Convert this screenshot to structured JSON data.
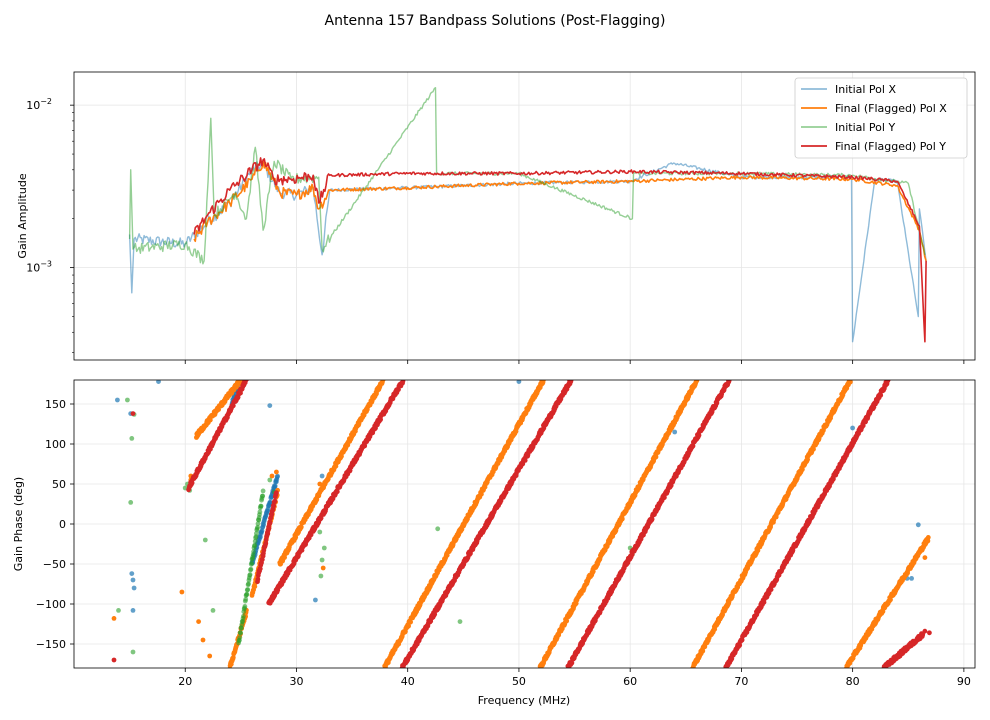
{
  "chart_data": [
    {
      "type": "line",
      "panel": "amplitude",
      "title": "Antenna 157 Bandpass Solutions (Post-Flagging)",
      "xlabel": "",
      "ylabel": "Gain Amplitude",
      "yscale": "log",
      "xlim": [
        10,
        91
      ],
      "ylim": [
        0.00027,
        0.016
      ],
      "x_ticks": [
        20,
        30,
        40,
        50,
        60,
        70,
        80,
        90
      ],
      "y_ticks": [
        {
          "value": 0.001,
          "base": "10",
          "exp": "−3"
        },
        {
          "value": 0.01,
          "base": "10",
          "exp": "−2"
        }
      ],
      "grid": true,
      "legend_position": "upper right",
      "series": [
        {
          "name": "Initial Pol X",
          "color": "#1f77b4",
          "alpha": 0.5,
          "x": [
            15.0,
            15.2,
            15.4,
            20.0,
            22.0,
            24.0,
            26.0,
            27.0,
            28.5,
            30.0,
            31.5,
            32.3,
            33.0,
            40.0,
            50.0,
            60.0,
            63.9,
            70.0,
            79.9,
            80.0,
            82.0,
            84.0,
            85.9,
            86.0,
            86.6
          ],
          "values": [
            0.0016,
            0.0007,
            0.0015,
            0.0014,
            0.0019,
            0.0025,
            0.004,
            0.0043,
            0.0029,
            0.0028,
            0.0031,
            0.0012,
            0.003,
            0.0031,
            0.0033,
            0.0034,
            0.0044,
            0.0036,
            0.0036,
            0.00035,
            0.0035,
            0.0034,
            0.0005,
            0.0023,
            0.0011
          ]
        },
        {
          "name": "Final (Flagged) Pol X",
          "color": "#ff7f0e",
          "alpha": 1,
          "x": [
            20.8,
            22.0,
            24.0,
            26.0,
            27.0,
            28.5,
            30.0,
            31.5,
            32.0,
            33.0,
            40.0,
            50.0,
            60.0,
            70.0,
            80.0,
            84.0,
            86.0,
            86.6
          ],
          "values": [
            0.0015,
            0.0019,
            0.0025,
            0.0035,
            0.0045,
            0.0029,
            0.0028,
            0.0031,
            0.0023,
            0.003,
            0.0031,
            0.0033,
            0.0034,
            0.0036,
            0.0035,
            0.0032,
            0.0017,
            0.0011
          ]
        },
        {
          "name": "Initial Pol Y",
          "color": "#2ca02c",
          "alpha": 0.5,
          "x": [
            15.0,
            15.1,
            15.3,
            20.0,
            21.7,
            22.3,
            22.6,
            24.5,
            25.5,
            26.3,
            27.0,
            28.0,
            29.5,
            32.0,
            32.3,
            42.5,
            42.6,
            50.0,
            60.2,
            60.3,
            70.0,
            80.0,
            85.0,
            86.5
          ],
          "values": [
            0.0015,
            0.004,
            0.0013,
            0.0014,
            0.0011,
            0.0083,
            0.0021,
            0.0029,
            0.002,
            0.0055,
            0.0017,
            0.0045,
            0.0035,
            0.0036,
            0.0013,
            0.0128,
            0.0038,
            0.0038,
            0.002,
            0.0038,
            0.0038,
            0.0037,
            0.0033,
            0.0012
          ]
        },
        {
          "name": "Final (Flagged) Pol Y",
          "color": "#d62728",
          "alpha": 1,
          "x": [
            20.8,
            22.0,
            24.0,
            26.0,
            27.0,
            28.0,
            29.5,
            31.5,
            32.0,
            33.0,
            40.0,
            50.0,
            60.0,
            70.0,
            80.0,
            84.0,
            86.0,
            86.5,
            86.6
          ],
          "values": [
            0.0016,
            0.0021,
            0.003,
            0.004,
            0.0046,
            0.0035,
            0.0035,
            0.0037,
            0.0025,
            0.0037,
            0.0038,
            0.0038,
            0.0039,
            0.0038,
            0.0036,
            0.0034,
            0.0018,
            0.00035,
            0.0011
          ]
        }
      ]
    },
    {
      "type": "scatter",
      "panel": "phase",
      "xlabel": "Frequency (MHz)",
      "ylabel": "Gain Phase (deg)",
      "xlim": [
        10,
        91
      ],
      "ylim": [
        -180,
        180
      ],
      "x_ticks": [
        20,
        30,
        40,
        50,
        60,
        70,
        80,
        90
      ],
      "y_ticks": [
        -150,
        -100,
        -50,
        0,
        50,
        100,
        150
      ],
      "grid": true,
      "series": [
        {
          "name": "Initial Pol X",
          "color": "#1f77b4",
          "alpha": 0.7,
          "segments": [
            [
              [
                24.2,
                150
              ],
              [
                24.9,
                180
              ]
            ],
            [
              [
                26.0,
                -50
              ],
              [
                28.3,
                60
              ]
            ]
          ],
          "points": [
            [
              13.9,
              155
            ],
            [
              15.1,
              138
            ],
            [
              15.2,
              -62
            ],
            [
              15.3,
              -70
            ],
            [
              15.4,
              -80
            ],
            [
              15.3,
              -108
            ],
            [
              17.6,
              178
            ],
            [
              27.6,
              148
            ],
            [
              31.7,
              -95
            ],
            [
              32.3,
              60
            ],
            [
              50.0,
              178
            ],
            [
              64.0,
              115
            ],
            [
              80.0,
              120
            ],
            [
              85.9,
              -1
            ],
            [
              84.9,
              -68
            ],
            [
              85.3,
              -68
            ]
          ]
        },
        {
          "name": "Final (Flagged) Pol X",
          "color": "#ff7f0e",
          "alpha": 1,
          "segments": [
            [
              [
                21.0,
                110
              ],
              [
                25.0,
                180
              ]
            ],
            [
              [
                24.0,
                -180
              ],
              [
                25.5,
                -110
              ]
            ],
            [
              [
                26.0,
                -90
              ],
              [
                28.3,
                40
              ]
            ],
            [
              [
                28.5,
                -50
              ],
              [
                37.8,
                180
              ]
            ],
            [
              [
                37.9,
                -180
              ],
              [
                52.2,
                180
              ]
            ],
            [
              [
                51.9,
                -180
              ],
              [
                66.0,
                180
              ]
            ],
            [
              [
                65.6,
                -180
              ],
              [
                79.8,
                180
              ]
            ],
            [
              [
                79.4,
                -180
              ],
              [
                86.8,
                -18
              ]
            ]
          ],
          "points": [
            [
              13.6,
              -118
            ],
            [
              19.7,
              -85
            ],
            [
              20.5,
              55
            ],
            [
              20.5,
              60
            ],
            [
              21.2,
              -122
            ],
            [
              21.6,
              -145
            ],
            [
              22.2,
              -165
            ],
            [
              27.8,
              60
            ],
            [
              28.2,
              65
            ],
            [
              32.1,
              50
            ],
            [
              32.4,
              -55
            ],
            [
              86.5,
              -42
            ]
          ]
        },
        {
          "name": "Initial Pol Y",
          "color": "#2ca02c",
          "alpha": 0.6,
          "segments": [
            [
              [
                24.8,
                -150
              ],
              [
                27.0,
                40
              ]
            ]
          ],
          "points": [
            [
              14.0,
              -108
            ],
            [
              14.8,
              155
            ],
            [
              15.1,
              27
            ],
            [
              15.2,
              107
            ],
            [
              15.4,
              137
            ],
            [
              15.3,
              -160
            ],
            [
              20.0,
              45
            ],
            [
              20.2,
              50
            ],
            [
              20.4,
              42
            ],
            [
              21.8,
              -20
            ],
            [
              22.5,
              -108
            ],
            [
              27.6,
              55
            ],
            [
              28.0,
              40
            ],
            [
              32.1,
              -10
            ],
            [
              32.5,
              -30
            ],
            [
              32.3,
              -45
            ],
            [
              32.2,
              -65
            ],
            [
              42.7,
              -6
            ],
            [
              44.7,
              -122
            ],
            [
              60.2,
              -38
            ],
            [
              60.0,
              -30
            ]
          ]
        },
        {
          "name": "Final (Flagged) Pol Y",
          "color": "#d62728",
          "alpha": 1,
          "segments": [
            [
              [
                20.3,
                45
              ],
              [
                25.5,
                180
              ]
            ],
            [
              [
                26.5,
                -70
              ],
              [
                28.2,
                40
              ]
            ],
            [
              [
                27.5,
                -100
              ],
              [
                39.6,
                180
              ]
            ],
            [
              [
                39.5,
                -180
              ],
              [
                54.7,
                180
              ]
            ],
            [
              [
                54.4,
                -180
              ],
              [
                68.9,
                180
              ]
            ],
            [
              [
                68.6,
                -180
              ],
              [
                83.2,
                180
              ]
            ],
            [
              [
                82.8,
                -180
              ],
              [
                86.3,
                -138
              ]
            ]
          ],
          "points": [
            [
              13.6,
              -170
            ],
            [
              15.3,
              138
            ],
            [
              86.5,
              -134
            ],
            [
              86.9,
              -136
            ]
          ]
        }
      ]
    }
  ]
}
